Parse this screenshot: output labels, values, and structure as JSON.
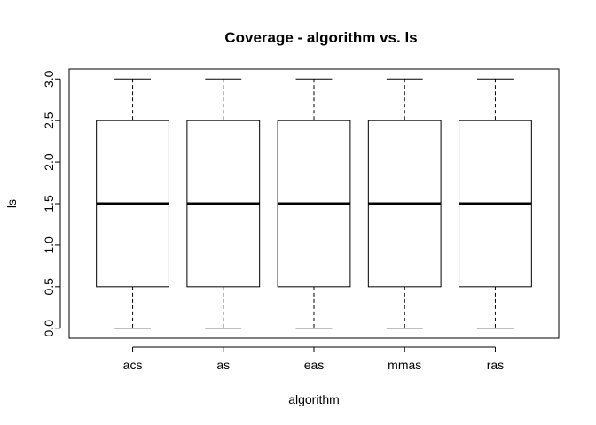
{
  "chart_data": {
    "type": "box",
    "title": "Coverage - algorithm vs. ls",
    "xlabel": "algorithm",
    "ylabel": "ls",
    "categories": [
      "acs",
      "as",
      "eas",
      "mmas",
      "ras"
    ],
    "boxes": [
      {
        "category": "acs",
        "min": 0.0,
        "q1": 0.5,
        "median": 1.5,
        "q3": 2.5,
        "max": 3.0
      },
      {
        "category": "as",
        "min": 0.0,
        "q1": 0.5,
        "median": 1.5,
        "q3": 2.5,
        "max": 3.0
      },
      {
        "category": "eas",
        "min": 0.0,
        "q1": 0.5,
        "median": 1.5,
        "q3": 2.5,
        "max": 3.0
      },
      {
        "category": "mmas",
        "min": 0.0,
        "q1": 0.5,
        "median": 1.5,
        "q3": 2.5,
        "max": 3.0
      },
      {
        "category": "ras",
        "min": 0.0,
        "q1": 0.5,
        "median": 1.5,
        "q3": 2.5,
        "max": 3.0
      }
    ],
    "y_ticks": [
      "0.0",
      "0.5",
      "1.0",
      "1.5",
      "2.0",
      "2.5",
      "3.0"
    ],
    "ylim": [
      -0.12,
      3.12
    ],
    "grid": false,
    "legend": "none"
  }
}
